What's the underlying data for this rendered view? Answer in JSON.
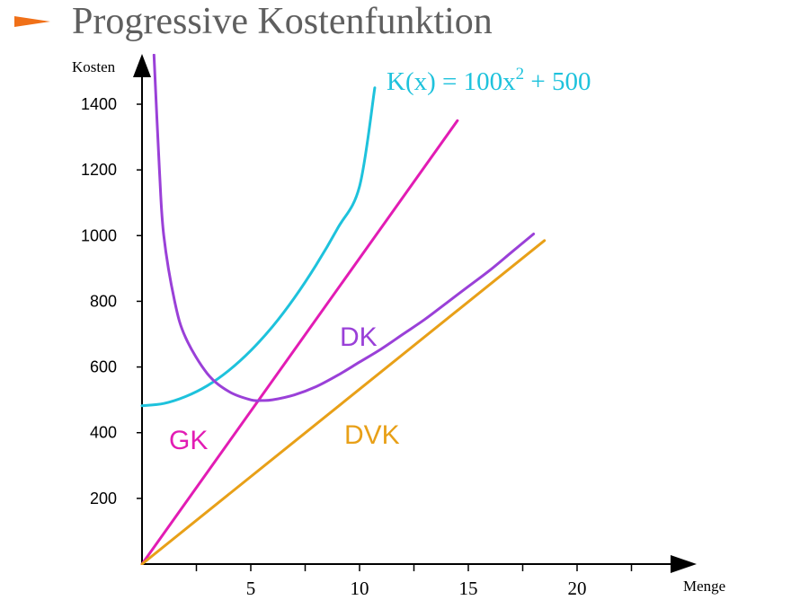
{
  "page": {
    "title": "Progressive Kostenfunktion"
  },
  "colors": {
    "bullet": "#f07018",
    "title": "#5f5f5f",
    "K": "#1ec2dc",
    "GK": "#e21cb4",
    "DK": "#9a40d8",
    "DVK": "#e8a018"
  },
  "chart_data": {
    "type": "line",
    "xlabel": "Menge",
    "ylabel": "Kosten",
    "xlim": [
      0,
      25
    ],
    "ylim": [
      0,
      1450
    ],
    "x_ticks": [
      5,
      10,
      15,
      20
    ],
    "y_ticks": [
      200,
      400,
      600,
      800,
      1000,
      1200,
      1400
    ],
    "formula": {
      "text": "K(x) = 100x",
      "sup": "2",
      "rest": " + 500"
    },
    "series": [
      {
        "name": "K",
        "key": "K",
        "x": [
          0,
          1,
          2,
          3,
          4,
          5,
          6,
          7,
          8,
          9,
          10,
          10.7
        ],
        "y": [
          482,
          489,
          510,
          543,
          590,
          650,
          723,
          810,
          910,
          1023,
          1150,
          1450
        ]
      },
      {
        "name": "GK",
        "key": "GK",
        "x": [
          0,
          14.5
        ],
        "y": [
          0,
          1350
        ]
      },
      {
        "name": "DK",
        "key": "DK",
        "x": [
          0.55,
          0.8,
          1,
          1.5,
          2,
          3,
          4,
          5,
          5.5,
          6,
          7,
          8,
          9,
          10,
          11,
          12,
          13,
          14,
          15,
          16,
          17,
          18
        ],
        "y": [
          1550,
          1200,
          1000,
          800,
          690,
          580,
          525,
          500,
          498,
          500,
          515,
          540,
          575,
          615,
          655,
          700,
          745,
          795,
          845,
          895,
          950,
          1005
        ]
      },
      {
        "name": "DVK",
        "key": "DVK",
        "x": [
          0,
          18.5
        ],
        "y": [
          0,
          985
        ]
      }
    ]
  }
}
